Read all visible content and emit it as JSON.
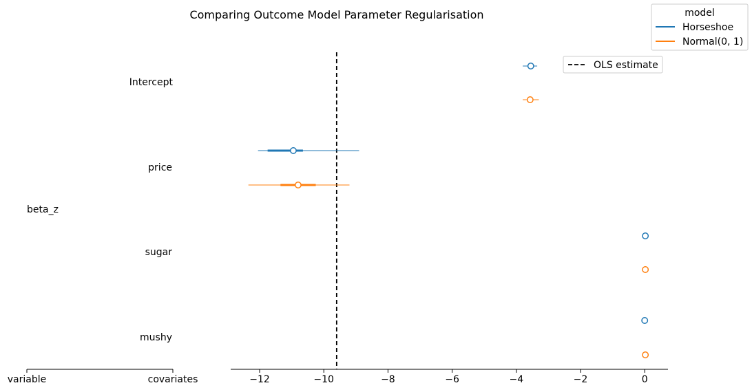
{
  "chart_data": {
    "type": "forest",
    "title": "Comparing Outcome Model Parameter Regularisation",
    "group_label": "beta_z",
    "row_labels": [
      "Intercept",
      "price",
      "sugar",
      "mushy"
    ],
    "column_headers": [
      "variable",
      "covariates"
    ],
    "x_ticks": [
      -12,
      -10,
      -8,
      -6,
      -4,
      -2,
      0
    ],
    "x_tick_labels": [
      "−12",
      "−10",
      "−8",
      "−6",
      "−4",
      "−2",
      "0"
    ],
    "xlim": [
      -12.9,
      0.8
    ],
    "legend_model": {
      "title": "model",
      "placement": "top-right",
      "entries": [
        {
          "label": "Horseshoe",
          "color": "#1f77b4"
        },
        {
          "label": "Normal(0, 1)",
          "color": "#ff7f0e"
        }
      ]
    },
    "legend_ols": {
      "label": "OLS estimate",
      "style": "dashed",
      "color": "#000000"
    },
    "ols_estimate": -9.6,
    "series": [
      {
        "name": "Horseshoe",
        "color": "#1f77b4",
        "points": [
          {
            "variable": "Intercept",
            "mean": -3.55,
            "hdi_low": -3.8,
            "hdi_high": -3.35,
            "iqr_low": -3.6,
            "iqr_high": -3.5
          },
          {
            "variable": "price",
            "mean": -10.95,
            "hdi_low": -12.05,
            "hdi_high": -8.9,
            "iqr_low": -11.75,
            "iqr_high": -10.65
          },
          {
            "variable": "sugar",
            "mean": 0.02,
            "hdi_low": 0.02,
            "hdi_high": 0.02,
            "iqr_low": 0.02,
            "iqr_high": 0.02
          },
          {
            "variable": "mushy",
            "mean": 0.0,
            "hdi_low": 0.0,
            "hdi_high": 0.0,
            "iqr_low": 0.0,
            "iqr_high": 0.0
          }
        ]
      },
      {
        "name": "Normal(0, 1)",
        "color": "#ff7f0e",
        "points": [
          {
            "variable": "Intercept",
            "mean": -3.57,
            "hdi_low": -3.8,
            "hdi_high": -3.3,
            "iqr_low": -3.62,
            "iqr_high": -3.5
          },
          {
            "variable": "price",
            "mean": -10.8,
            "hdi_low": -12.35,
            "hdi_high": -9.2,
            "iqr_low": -11.35,
            "iqr_high": -10.25
          },
          {
            "variable": "sugar",
            "mean": 0.02,
            "hdi_low": 0.02,
            "hdi_high": 0.02,
            "iqr_low": 0.02,
            "iqr_high": 0.02
          },
          {
            "variable": "mushy",
            "mean": 0.02,
            "hdi_low": 0.02,
            "hdi_high": 0.02,
            "iqr_low": 0.02,
            "iqr_high": 0.02
          }
        ]
      }
    ]
  }
}
